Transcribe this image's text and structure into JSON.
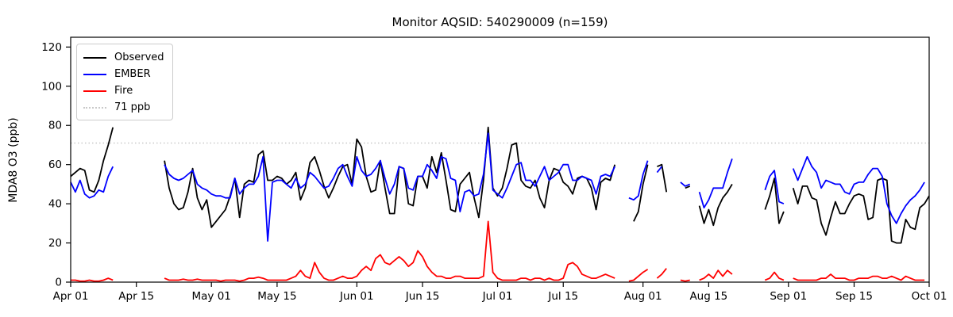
{
  "figure": {
    "title": "Monitor AQSID: 540290009 (n=159)",
    "background": "#ffffff"
  },
  "chart_data": {
    "type": "line",
    "title": "Monitor AQSID: 540290009 (n=159)",
    "xlabel": "",
    "ylabel": "MDA8 O3 (ppb)",
    "ylim": [
      0,
      125
    ],
    "yticks": [
      0,
      20,
      40,
      60,
      80,
      100,
      120
    ],
    "grid": false,
    "legend_position": "upper left",
    "x_unit": "days since Apr 01",
    "x_range_days": [
      0,
      183
    ],
    "xticks": [
      {
        "day": 0,
        "label": "Apr 01"
      },
      {
        "day": 14,
        "label": "Apr 15"
      },
      {
        "day": 30,
        "label": "May 01"
      },
      {
        "day": 44,
        "label": "May 15"
      },
      {
        "day": 61,
        "label": "Jun 01"
      },
      {
        "day": 75,
        "label": "Jun 15"
      },
      {
        "day": 91,
        "label": "Jul 01"
      },
      {
        "day": 105,
        "label": "Jul 15"
      },
      {
        "day": 122,
        "label": "Aug 01"
      },
      {
        "day": 136,
        "label": "Aug 15"
      },
      {
        "day": 153,
        "label": "Sep 01"
      },
      {
        "day": 167,
        "label": "Sep 15"
      },
      {
        "day": 183,
        "label": "Oct 01"
      }
    ],
    "threshold": {
      "value": 71,
      "label": "71 ppb",
      "color": "#c9c9c9",
      "style": "dotted"
    },
    "series": [
      {
        "name": "Observed",
        "color": "#000000",
        "values": [
          54,
          56,
          58,
          57,
          47,
          46,
          52,
          62,
          70,
          79,
          null,
          null,
          null,
          null,
          null,
          null,
          null,
          null,
          null,
          null,
          62,
          48,
          40,
          37,
          38,
          46,
          58,
          43,
          37,
          42,
          28,
          31,
          34,
          37,
          44,
          53,
          33,
          50,
          52,
          51,
          65,
          67,
          52,
          52,
          54,
          53,
          50,
          52,
          56,
          42,
          48,
          61,
          64,
          57,
          49,
          43,
          48,
          54,
          59,
          60,
          50,
          73,
          69,
          54,
          46,
          47,
          62,
          48,
          35,
          35,
          59,
          58,
          40,
          39,
          54,
          54,
          48,
          64,
          56,
          66,
          52,
          37,
          36,
          50,
          53,
          56,
          43,
          33,
          52,
          79,
          48,
          44,
          48,
          58,
          70,
          71,
          52,
          49,
          48,
          52,
          43,
          38,
          52,
          58,
          57,
          51,
          49,
          45,
          53,
          54,
          53,
          48,
          37,
          51,
          53,
          52,
          60,
          null,
          null,
          null,
          31,
          36,
          50,
          60,
          null,
          59,
          60,
          46,
          null,
          null,
          null,
          48,
          49,
          null,
          39,
          30,
          37,
          29,
          38,
          43,
          46,
          50,
          null,
          null,
          null,
          null,
          null,
          null,
          37,
          44,
          53,
          30,
          36,
          null,
          48,
          40,
          49,
          49,
          43,
          42,
          30,
          24,
          33,
          41,
          35,
          35,
          40,
          44,
          45,
          44,
          32,
          33,
          52,
          53,
          52,
          21,
          20,
          20,
          32,
          28,
          27,
          38,
          40,
          44
        ]
      },
      {
        "name": "EMBER",
        "color": "#0000ff",
        "values": [
          51,
          46,
          52,
          45,
          43,
          44,
          47,
          46,
          54,
          59,
          null,
          null,
          null,
          null,
          null,
          null,
          null,
          null,
          null,
          null,
          60,
          55,
          53,
          52,
          53,
          55,
          57,
          50,
          48,
          47,
          45,
          44,
          44,
          43,
          43,
          53,
          45,
          48,
          50,
          50,
          54,
          64,
          21,
          51,
          52,
          52,
          50,
          48,
          53,
          48,
          50,
          56,
          54,
          51,
          48,
          49,
          53,
          58,
          60,
          54,
          49,
          64,
          57,
          54,
          55,
          58,
          62,
          53,
          45,
          50,
          59,
          58,
          48,
          47,
          54,
          54,
          60,
          57,
          53,
          64,
          63,
          53,
          52,
          36,
          46,
          47,
          44,
          45,
          55,
          76,
          47,
          45,
          43,
          48,
          54,
          60,
          61,
          52,
          52,
          49,
          54,
          59,
          52,
          54,
          56,
          60,
          60,
          52,
          52,
          54,
          53,
          52,
          45,
          54,
          55,
          54,
          59,
          null,
          null,
          43,
          42,
          44,
          55,
          62,
          null,
          56,
          59,
          null,
          null,
          null,
          51,
          49,
          50,
          null,
          46,
          38,
          42,
          48,
          48,
          48,
          56,
          63,
          null,
          null,
          null,
          null,
          null,
          null,
          47,
          54,
          57,
          41,
          40,
          null,
          58,
          52,
          58,
          64,
          59,
          56,
          48,
          52,
          51,
          50,
          50,
          46,
          45,
          50,
          51,
          51,
          55,
          58,
          58,
          54,
          40,
          34,
          30,
          35,
          39,
          42,
          44,
          47,
          51,
          null
        ]
      },
      {
        "name": "Fire",
        "color": "#ff0000",
        "values": [
          1,
          1,
          0.5,
          0.5,
          1,
          0.5,
          0.5,
          1,
          2,
          1,
          null,
          null,
          null,
          null,
          null,
          null,
          null,
          null,
          null,
          null,
          2,
          1,
          1,
          1,
          1.5,
          1,
          1,
          1.5,
          1,
          1,
          1,
          1,
          0.5,
          1,
          1,
          1,
          0.5,
          1,
          2,
          2,
          2.5,
          2,
          1,
          1,
          1,
          1,
          1,
          2,
          3,
          6,
          3,
          2,
          10,
          5,
          2,
          1,
          1,
          2,
          3,
          2,
          2,
          3,
          6,
          8,
          6,
          12,
          14,
          10,
          9,
          11,
          13,
          11,
          8,
          10,
          16,
          13,
          8,
          5,
          3,
          3,
          2,
          2,
          3,
          3,
          2,
          2,
          2,
          2,
          3,
          31,
          5,
          2,
          1,
          1,
          1,
          1,
          2,
          2,
          1,
          2,
          2,
          1,
          2,
          1,
          1,
          2,
          9,
          10,
          8,
          4,
          3,
          2,
          2,
          3,
          4,
          3,
          2,
          null,
          null,
          0.5,
          1,
          3,
          5,
          6.5,
          null,
          2,
          4,
          7,
          null,
          null,
          1,
          0.5,
          1,
          null,
          1,
          2,
          4,
          2,
          6,
          3,
          6,
          4,
          null,
          null,
          null,
          null,
          null,
          null,
          1,
          2,
          5,
          2,
          1,
          null,
          2,
          1,
          1,
          1,
          1,
          1,
          2,
          2,
          4,
          2,
          2,
          2,
          1,
          1,
          2,
          2,
          2,
          3,
          3,
          2,
          2,
          3,
          2,
          1,
          3,
          2,
          1,
          1,
          1,
          null
        ]
      }
    ],
    "legend_entries": [
      "Observed",
      "EMBER",
      "Fire",
      "71 ppb"
    ]
  },
  "layout_colors": {
    "axis": "#000000",
    "tick_label": "#000000",
    "legend_border": "#cccccc"
  }
}
